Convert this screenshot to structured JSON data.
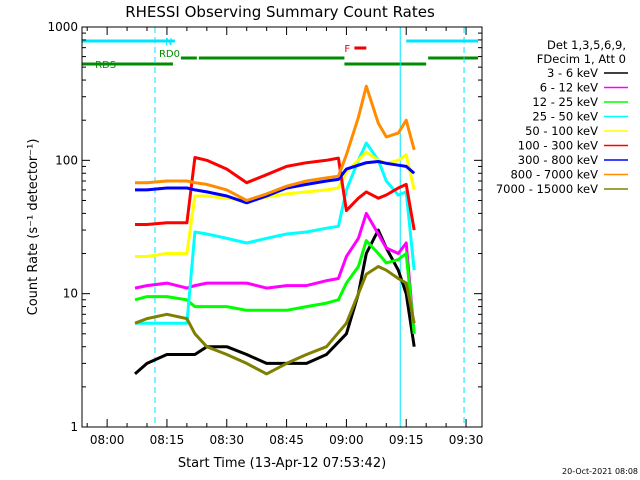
{
  "chart_data": {
    "type": "line",
    "title": "RHESSI Observing Summary Count Rates",
    "xlabel": "Start Time (13-Apr-12 07:53:42)",
    "ylabel": "Count Rate (s⁻¹ detector⁻¹)",
    "yscale": "log",
    "ylim": [
      1,
      1000
    ],
    "xlim": [
      "07:53:42",
      "09:34:00"
    ],
    "x_ticks": [
      "08:00",
      "08:15",
      "08:30",
      "08:45",
      "09:00",
      "09:15",
      "09:30"
    ],
    "y_ticks": [
      "1",
      "10",
      "100",
      "1000"
    ],
    "legend": {
      "placement": "right",
      "header": [
        "Det 1,3,5,6,9,",
        "FDecim 1, Att 0"
      ]
    },
    "flags": [
      {
        "label": "N",
        "color": "#00e5ff",
        "segments": [
          [
            "07:53:42",
            "08:17:00"
          ],
          [
            "09:15:00",
            "09:33:00"
          ]
        ]
      },
      {
        "label": "RD0",
        "color": "#008c00",
        "segments": [
          [
            "08:18:30",
            "08:22:30"
          ],
          [
            "08:23:00",
            "08:59:30"
          ],
          [
            "09:20:30",
            "09:33:00"
          ]
        ]
      },
      {
        "label": "RDS",
        "color": "#008c00",
        "segments": [
          [
            "07:53:42",
            "08:16:30"
          ],
          [
            "08:59:30",
            "09:20:00"
          ]
        ]
      },
      {
        "label": "F",
        "color": "#ee0000",
        "segments": [
          [
            "09:02:00",
            "09:05:00"
          ]
        ]
      }
    ],
    "vlines": [
      {
        "time": "07:53:42",
        "color": "#00e5ff",
        "style": "solid"
      },
      {
        "time": "08:12:00",
        "color": "#00e5ff",
        "style": "dashed"
      },
      {
        "time": "09:13:30",
        "color": "#00e5ff",
        "style": "solid"
      },
      {
        "time": "09:29:30",
        "color": "#00e5ff",
        "style": "dashed"
      }
    ],
    "series": [
      {
        "name": "3 - 6 keV",
        "color": "#000000",
        "x": [
          "08:07",
          "08:10",
          "08:15",
          "08:20",
          "08:22",
          "08:25",
          "08:30",
          "08:35",
          "08:40",
          "08:45",
          "08:50",
          "08:55",
          "09:00",
          "09:03",
          "09:05",
          "09:08",
          "09:10",
          "09:13",
          "09:15",
          "09:17"
        ],
        "y": [
          2.5,
          3,
          3.5,
          3.5,
          3.5,
          4,
          4,
          3.5,
          3,
          3,
          3,
          3.5,
          5,
          10,
          20,
          30,
          22,
          15,
          10,
          4
        ]
      },
      {
        "name": "6 - 12 keV",
        "color": "#ff00ff",
        "x": [
          "08:07",
          "08:10",
          "08:15",
          "08:20",
          "08:22",
          "08:25",
          "08:30",
          "08:35",
          "08:40",
          "08:45",
          "08:50",
          "08:55",
          "08:58",
          "09:00",
          "09:03",
          "09:05",
          "09:08",
          "09:10",
          "09:13",
          "09:15",
          "09:17"
        ],
        "y": [
          11,
          11.5,
          12,
          11,
          11.5,
          12,
          12,
          12,
          11,
          11.5,
          11.5,
          12.5,
          13,
          19,
          26,
          40,
          28,
          22,
          20,
          24,
          5
        ]
      },
      {
        "name": "12 - 25 keV",
        "color": "#00ff00",
        "x": [
          "08:07",
          "08:10",
          "08:15",
          "08:20",
          "08:22",
          "08:25",
          "08:30",
          "08:35",
          "08:40",
          "08:45",
          "08:50",
          "08:55",
          "08:58",
          "09:00",
          "09:03",
          "09:05",
          "09:08",
          "09:10",
          "09:13",
          "09:15",
          "09:17"
        ],
        "y": [
          9,
          9.5,
          9.5,
          9,
          8,
          8,
          8,
          7.5,
          7.5,
          7.5,
          8,
          8.5,
          9,
          12,
          16,
          25,
          20,
          17,
          18,
          20,
          5
        ]
      },
      {
        "name": "25 - 50 keV",
        "color": "#00ffff",
        "x": [
          "08:07",
          "08:10",
          "08:15",
          "08:20",
          "08:22",
          "08:25",
          "08:30",
          "08:35",
          "08:40",
          "08:45",
          "08:50",
          "08:55",
          "08:58",
          "09:00",
          "09:03",
          "09:05",
          "09:08",
          "09:10",
          "09:13",
          "09:15",
          "09:17"
        ],
        "y": [
          6,
          6,
          6,
          6,
          29,
          28,
          26,
          24,
          26,
          28,
          29,
          31,
          32,
          60,
          100,
          135,
          100,
          70,
          55,
          58,
          15
        ]
      },
      {
        "name": "50 - 100 keV",
        "color": "#ffff00",
        "x": [
          "08:07",
          "08:10",
          "08:15",
          "08:20",
          "08:22",
          "08:25",
          "08:30",
          "08:35",
          "08:40",
          "08:45",
          "08:50",
          "08:55",
          "08:58",
          "09:00",
          "09:03",
          "09:05",
          "09:08",
          "09:10",
          "09:13",
          "09:15",
          "09:17"
        ],
        "y": [
          19,
          19,
          20,
          20,
          54,
          54,
          52,
          50,
          53,
          56,
          58,
          60,
          62,
          82,
          100,
          115,
          100,
          95,
          100,
          110,
          60
        ]
      },
      {
        "name": "100 - 300 keV",
        "color": "#ff0000",
        "x": [
          "08:07",
          "08:10",
          "08:15",
          "08:20",
          "08:22",
          "08:25",
          "08:30",
          "08:35",
          "08:40",
          "08:45",
          "08:50",
          "08:55",
          "08:58",
          "09:00",
          "09:03",
          "09:05",
          "09:08",
          "09:10",
          "09:13",
          "09:15",
          "09:17"
        ],
        "y": [
          33,
          33,
          34,
          34,
          105,
          100,
          86,
          68,
          78,
          90,
          96,
          100,
          104,
          42,
          52,
          58,
          52,
          55,
          62,
          66,
          30
        ]
      },
      {
        "name": "300 - 800 keV",
        "color": "#0000ff",
        "x": [
          "08:07",
          "08:10",
          "08:15",
          "08:20",
          "08:22",
          "08:25",
          "08:30",
          "08:35",
          "08:40",
          "08:45",
          "08:50",
          "08:55",
          "08:58",
          "09:00",
          "09:03",
          "09:05",
          "09:08",
          "09:10",
          "09:13",
          "09:15",
          "09:17"
        ],
        "y": [
          60,
          60,
          62,
          62,
          60,
          58,
          54,
          48,
          54,
          62,
          66,
          70,
          72,
          86,
          92,
          96,
          98,
          95,
          92,
          90,
          80
        ]
      },
      {
        "name": "800 - 7000 keV",
        "color": "#ff8c00",
        "x": [
          "08:07",
          "08:10",
          "08:15",
          "08:20",
          "08:22",
          "08:25",
          "08:30",
          "08:35",
          "08:40",
          "08:45",
          "08:50",
          "08:55",
          "08:58",
          "09:00",
          "09:03",
          "09:05",
          "09:08",
          "09:10",
          "09:13",
          "09:15",
          "09:17"
        ],
        "y": [
          68,
          68,
          70,
          70,
          68,
          66,
          60,
          50,
          56,
          64,
          70,
          74,
          76,
          110,
          210,
          360,
          190,
          150,
          160,
          200,
          120
        ]
      },
      {
        "name": "7000 - 15000 keV",
        "color": "#808000",
        "x": [
          "08:07",
          "08:10",
          "08:15",
          "08:20",
          "08:22",
          "08:25",
          "08:30",
          "08:35",
          "08:40",
          "08:45",
          "08:50",
          "08:55",
          "09:00",
          "09:03",
          "09:05",
          "09:08",
          "09:10",
          "09:13",
          "09:15",
          "09:17"
        ],
        "y": [
          6,
          6.5,
          7,
          6.5,
          5,
          4,
          3.5,
          3,
          2.5,
          3,
          3.5,
          4,
          6,
          10,
          14,
          16,
          15,
          13,
          12,
          6
        ]
      }
    ]
  },
  "footer": {
    "timestamp": "20-Oct-2021 08:08"
  }
}
